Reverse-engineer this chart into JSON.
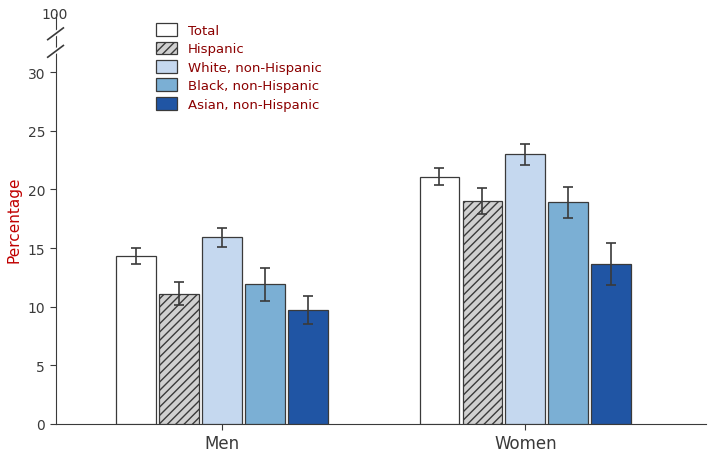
{
  "groups": [
    "Men",
    "Women"
  ],
  "categories": [
    "Total",
    "Hispanic",
    "White, non-Hispanic",
    "Black, non-Hispanic",
    "Asian, non-Hispanic"
  ],
  "values": {
    "Men": [
      14.3,
      11.1,
      15.9,
      11.9,
      9.7
    ],
    "Women": [
      21.1,
      19.0,
      23.0,
      18.9,
      13.6
    ]
  },
  "errors": {
    "Men": [
      0.7,
      1.0,
      0.8,
      1.4,
      1.2
    ],
    "Women": [
      0.7,
      1.1,
      0.9,
      1.3,
      1.8
    ]
  },
  "bar_colors": [
    "#ffffff",
    "#d0d0d0",
    "#c5d8ef",
    "#7bafd4",
    "#2055a4"
  ],
  "bar_hatches": [
    "",
    "////",
    "",
    "",
    ""
  ],
  "bar_edgecolors": [
    "#3a3a3a",
    "#3a3a3a",
    "#3a3a3a",
    "#3a3a3a",
    "#3a3a3a"
  ],
  "legend_labels": [
    "Total",
    "Hispanic",
    "White, non-Hispanic",
    "Black, non-Hispanic",
    "Asian, non-Hispanic"
  ],
  "ylabel": "Percentage",
  "ylim": [
    0,
    35
  ],
  "yticks": [
    0,
    5,
    10,
    15,
    20,
    25,
    30
  ],
  "background_color": "#ffffff",
  "axis_color": "#3a3a3a",
  "error_color": "#3a3a3a",
  "bar_width": 0.055,
  "group_centers": [
    0.28,
    0.7
  ],
  "figsize": [
    7.13,
    4.6
  ],
  "dpi": 100,
  "legend_text_color": "#8b0000",
  "ylabel_color": "#c00000"
}
